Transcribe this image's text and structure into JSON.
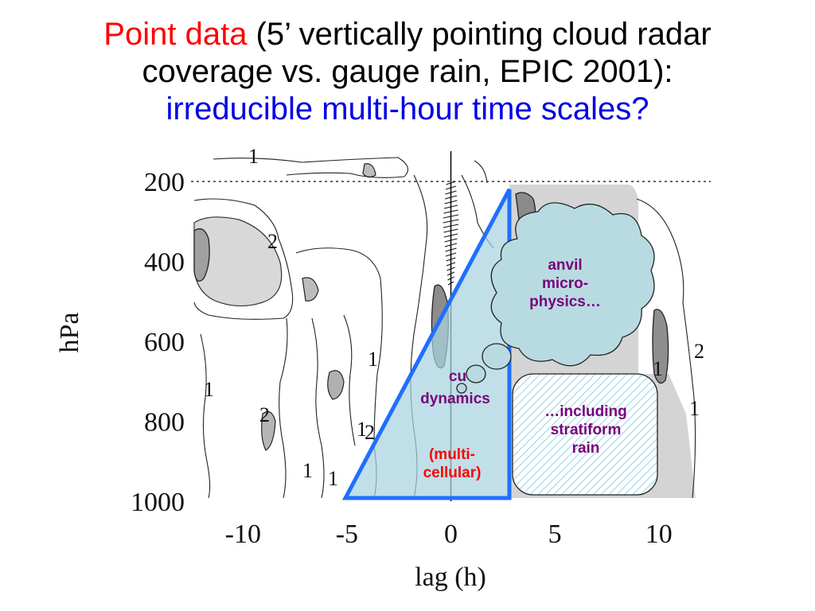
{
  "title": {
    "line1_red": "Point data",
    "line1_rest": " (5’ vertically pointing cloud radar",
    "line2": "coverage vs. gauge rain, EPIC 2001):",
    "line3_blue": "irreducible multi-hour time scales?"
  },
  "chart_data": {
    "type": "heatmap",
    "xlabel": "lag (h)",
    "ylabel": "hPa",
    "xlim": [
      -12.5,
      12.5
    ],
    "ylim": [
      1000,
      120
    ],
    "x_ticks": [
      "-10",
      "-5",
      "0",
      "5",
      "10"
    ],
    "x_tick_values": [
      -10,
      -5,
      0,
      5,
      10
    ],
    "y_ticks": [
      "200",
      "400",
      "600",
      "800",
      "1000"
    ],
    "y_tick_values": [
      200,
      400,
      600,
      800,
      1000
    ],
    "contour_levels": [
      "1",
      "2"
    ],
    "reference_lines": [
      {
        "type": "horizontal",
        "style": "dotted",
        "value": 200
      },
      {
        "type": "vertical",
        "style": "solid",
        "value": 0
      }
    ],
    "annotations": {
      "triangle": {
        "label_top": "cu",
        "label_mid": "dynamics",
        "label_bottom": "(multi-\ncellular)"
      },
      "cloud": {
        "label": "anvil\nmicro-\nphysics…"
      },
      "box": {
        "label": "…including\nstratiform\nrain"
      }
    }
  },
  "colors": {
    "title_red": "#ff0000",
    "title_blue": "#0000e6",
    "annotation_purple": "#7a007a",
    "annotation_red": "#ff0000",
    "triangle_edge": "#1f6fff",
    "triangle_fill": "#a9d3e0",
    "shade_light": "#d2d2d2",
    "shade_dark": "#9a9a9a"
  }
}
